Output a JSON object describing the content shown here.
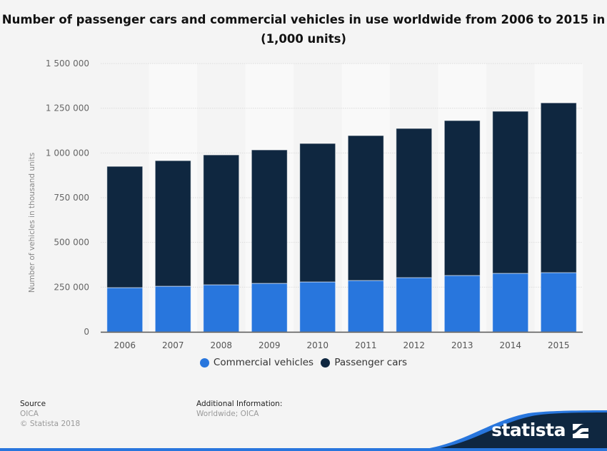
{
  "chart_data": {
    "type": "bar",
    "stacked": true,
    "title": "Number of passenger cars and commercial vehicles in use worldwide from 2006 to 2015 in (1,000 units)",
    "xlabel": "",
    "ylabel": "Number of vehicles in thousand units",
    "categories": [
      "2006",
      "2007",
      "2008",
      "2009",
      "2010",
      "2011",
      "2012",
      "2013",
      "2014",
      "2015"
    ],
    "series": [
      {
        "name": "Commercial vehicles",
        "color": "#2876dd",
        "values": [
          247000,
          255000,
          263000,
          271000,
          279000,
          287000,
          303000,
          315000,
          327000,
          331000
        ]
      },
      {
        "name": "Passenger cars",
        "color": "#0f2740",
        "values": [
          678000,
          702000,
          726000,
          746000,
          774000,
          810000,
          834000,
          866000,
          906000,
          949000
        ]
      }
    ],
    "ylim": [
      0,
      1500000
    ],
    "yticks": [
      0,
      250000,
      500000,
      750000,
      1000000,
      1250000,
      1500000
    ],
    "ytick_labels": [
      "0",
      "250 000",
      "500 000",
      "750 000",
      "1 000 000",
      "1 250 000",
      "1 500 000"
    ],
    "grid": true,
    "legend_position": "bottom-center"
  },
  "legend": {
    "items": [
      {
        "label": "Commercial vehicles",
        "color": "#2876dd"
      },
      {
        "label": "Passenger cars",
        "color": "#0f2740"
      }
    ]
  },
  "footer": {
    "source_heading": "Source",
    "source_value": "OICA",
    "copyright": "© Statista 2018",
    "additional_heading": "Additional Information:",
    "additional_value": "Worldwide; OICA"
  },
  "brand": {
    "name": "statista",
    "colors": {
      "dark": "#0f2740",
      "accent": "#2876dd"
    }
  }
}
